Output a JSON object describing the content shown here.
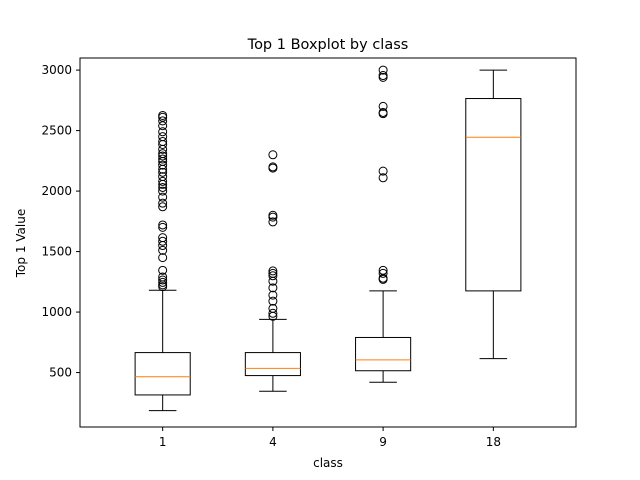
{
  "chart_data": {
    "type": "boxplot",
    "title": "Top 1 Boxplot by class",
    "xlabel": "class",
    "ylabel": "Top 1 Value",
    "categories": [
      "1",
      "4",
      "9",
      "18"
    ],
    "ylim": [
      50,
      3100
    ],
    "yticks": [
      500,
      1000,
      1500,
      2000,
      2500,
      3000
    ],
    "grid": false,
    "boxes": [
      {
        "category": "1",
        "whisker_low": 185,
        "q1": 315,
        "median": 465,
        "q3": 665,
        "whisker_high": 1180,
        "outliers": [
          1210,
          1225,
          1245,
          1265,
          1290,
          1345,
          1450,
          1510,
          1550,
          1585,
          1615,
          1700,
          1720,
          1870,
          1900,
          1950,
          2000,
          2030,
          2055,
          2080,
          2120,
          2155,
          2180,
          2215,
          2245,
          2265,
          2290,
          2310,
          2345,
          2385,
          2410,
          2450,
          2490,
          2540,
          2580,
          2610,
          2625
        ]
      },
      {
        "category": "4",
        "whisker_low": 345,
        "q1": 475,
        "median": 535,
        "q3": 665,
        "whisker_high": 940,
        "outliers": [
          965,
          990,
          1030,
          1090,
          1140,
          1200,
          1255,
          1300,
          1320,
          1340,
          1745,
          1785,
          1800,
          2190,
          2200,
          2300
        ]
      },
      {
        "category": "9",
        "whisker_low": 420,
        "q1": 515,
        "median": 605,
        "q3": 790,
        "whisker_high": 1175,
        "outliers": [
          1270,
          1280,
          1320,
          1345,
          2110,
          2165,
          2640,
          2650,
          2700,
          2940,
          2955,
          3000
        ]
      },
      {
        "category": "18",
        "whisker_low": 615,
        "q1": 1175,
        "median": 2445,
        "q3": 2765,
        "whisker_high": 3000,
        "outliers": []
      }
    ],
    "colors": {
      "box": "#000000",
      "median": "#ff7f0e",
      "background": "#ffffff"
    }
  }
}
